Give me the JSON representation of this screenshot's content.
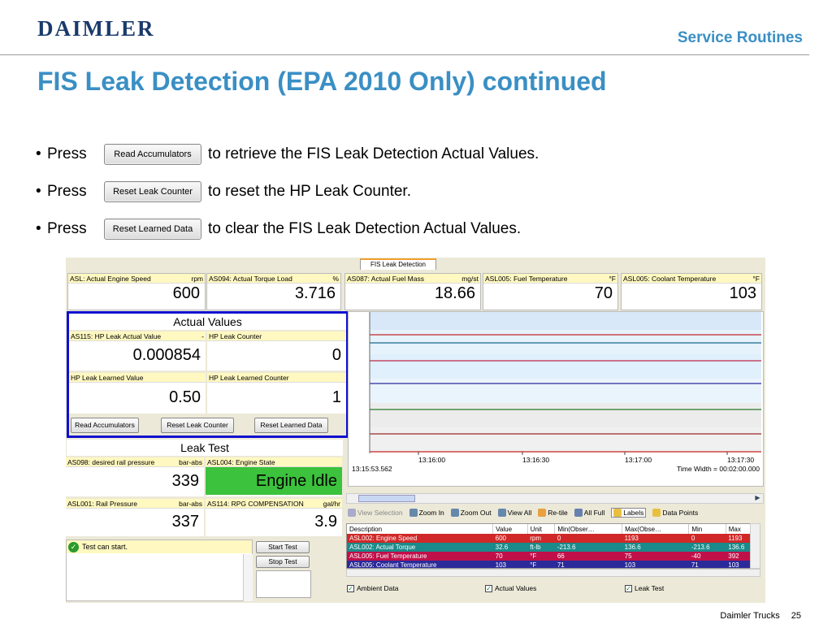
{
  "header": {
    "logo": "DAIMLER",
    "section": "Service Routines",
    "title": "FIS Leak Detection (EPA 2010 Only) continued"
  },
  "bullets": [
    {
      "dot": "•",
      "press": "Press",
      "button": "Read Accumulators",
      "text": "to retrieve the FIS Leak Detection Actual Values."
    },
    {
      "dot": "•",
      "press": "Press",
      "button": "Reset Leak Counter",
      "text": "to reset the HP Leak Counter."
    },
    {
      "dot": "•",
      "press": "Press",
      "button": "Reset Learned Data",
      "text": "to clear the FIS Leak Detection Actual Values."
    }
  ],
  "app": {
    "tab": "FIS Leak Detection",
    "top_gauges": [
      {
        "label": "ASL: Actual Engine Speed",
        "unit": "rpm",
        "value": "600"
      },
      {
        "label": "AS094: Actual Torque Load",
        "unit": "%",
        "value": "3.716"
      },
      {
        "label": "AS087: Actual Fuel Mass",
        "unit": "mg/st",
        "value": "18.66"
      },
      {
        "label": "ASL005: Fuel Temperature",
        "unit": "°F",
        "value": "70"
      },
      {
        "label": "ASL005: Coolant Temperature",
        "unit": "°F",
        "value": "103"
      }
    ],
    "actual_values": {
      "caption": "Actual Values",
      "g1": {
        "label": "AS115: HP Leak Actual Value",
        "unit": "-",
        "value": "0.000854"
      },
      "g2": {
        "label": "HP Leak Counter",
        "unit": "",
        "value": "0"
      },
      "g3": {
        "label": "HP Leak Learned Value",
        "unit": "",
        "value": "0.50"
      },
      "g4": {
        "label": "HP Leak Learned Counter",
        "unit": "",
        "value": "1"
      },
      "buttons": [
        "Read Accumulators",
        "Reset Leak Counter",
        "Reset Learned Data"
      ]
    },
    "leak_test": {
      "caption": "Leak Test",
      "g1": {
        "label": "AS098: desired rail pressure",
        "unit": "bar-abs",
        "value": "339"
      },
      "g2": {
        "label": "ASL004: Engine State",
        "unit": "",
        "value": "Engine Idle"
      },
      "g3": {
        "label": "ASL001: Rail Pressure",
        "unit": "bar-abs",
        "value": "337"
      },
      "g4": {
        "label": "AS114: RPG COMPENSATION",
        "unit": "gal/hr",
        "value": "3.9"
      },
      "status": "Test can start.",
      "start": "Start Test",
      "stop": "Stop Test"
    },
    "chart": {
      "ticks": [
        "13:16:00",
        "13:16:30",
        "13:17:00",
        "13:17:30"
      ],
      "start_time": "13:15:53.562",
      "time_width": "Time Width = 00:02:00.000"
    },
    "toolbar": [
      "View Selection",
      "Zoom In",
      "Zoom Out",
      "View All",
      "Re-tile",
      "All Full",
      "Labels",
      "Data Points"
    ],
    "table": {
      "headers": [
        "Description",
        "Value",
        "Unit",
        "Min(Obser…",
        "Max(Obse…",
        "Min",
        "Max"
      ],
      "rows": [
        {
          "cells": [
            "ASL002: Engine Speed",
            "600",
            "rpm",
            "0",
            "1193",
            "0",
            "1193"
          ],
          "color": "#d02828"
        },
        {
          "cells": [
            "ASL002: Actual Torque",
            "32.6",
            "ft-lb",
            "-213.6",
            "136.6",
            "-213.6",
            "136.6"
          ],
          "color": "#1a8a8a"
        },
        {
          "cells": [
            "ASL005: Fuel Temperature",
            "70",
            "°F",
            "66",
            "75",
            "-40",
            "392"
          ],
          "color": "#c0104a"
        },
        {
          "cells": [
            "ASL005: Coolant Temperature",
            "103",
            "°F",
            "71",
            "103",
            "71",
            "103"
          ],
          "color": "#2a2a9a"
        }
      ]
    },
    "checks": [
      "Ambient Data",
      "Actual Values",
      "Leak Test"
    ],
    "check_mark": "✓"
  },
  "footer": {
    "brand": "Daimler Trucks",
    "page": "25"
  }
}
